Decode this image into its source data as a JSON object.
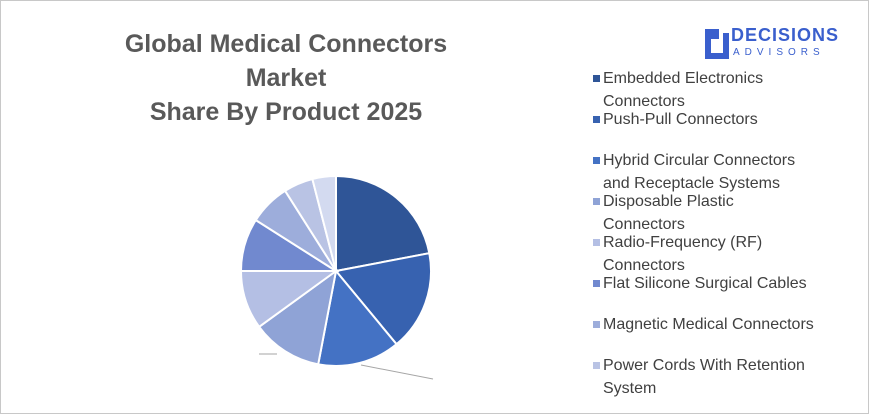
{
  "chart_data": {
    "type": "pie",
    "title": [
      "Global Medical Connectors Market",
      "Share By Product 2025"
    ],
    "logo": {
      "name": "DECISIONS",
      "tagline": "ADVISORS"
    },
    "categories": [
      "Embedded Electronics Connectors",
      "Push-Pull Connectors",
      "Hybrid Circular Connectors and Receptacle Systems",
      "Disposable Plastic Connectors",
      "Radio-Frequency (RF) Connectors",
      "Flat Silicone Surgical Cables",
      "Magnetic Medical Connectors",
      "Power Cords With Retention System",
      null
    ],
    "values": [
      22,
      17,
      14,
      12,
      10,
      9,
      7,
      5,
      4
    ],
    "colors": [
      "#2f5597",
      "#3762b0",
      "#4472c4",
      "#8fa3d6",
      "#b4bfe4",
      "#7189cf",
      "#9daddb",
      "#b9c3e4",
      "#d3daf0"
    ],
    "legend": "right"
  }
}
